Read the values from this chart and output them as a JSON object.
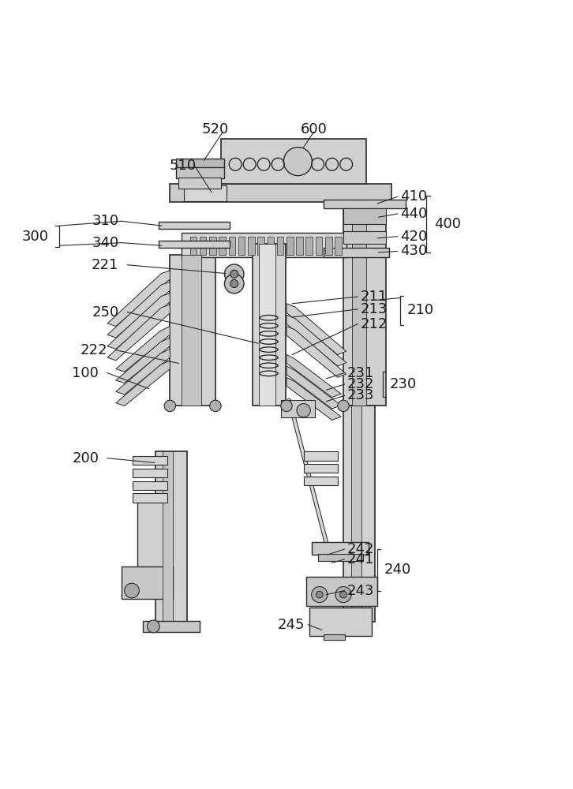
{
  "bg_color": "#ffffff",
  "line_color": "#2a2a2a",
  "label_color": "#1a1a1a",
  "figsize": [
    7.26,
    10.0
  ],
  "dpi": 100,
  "font_size": 13
}
